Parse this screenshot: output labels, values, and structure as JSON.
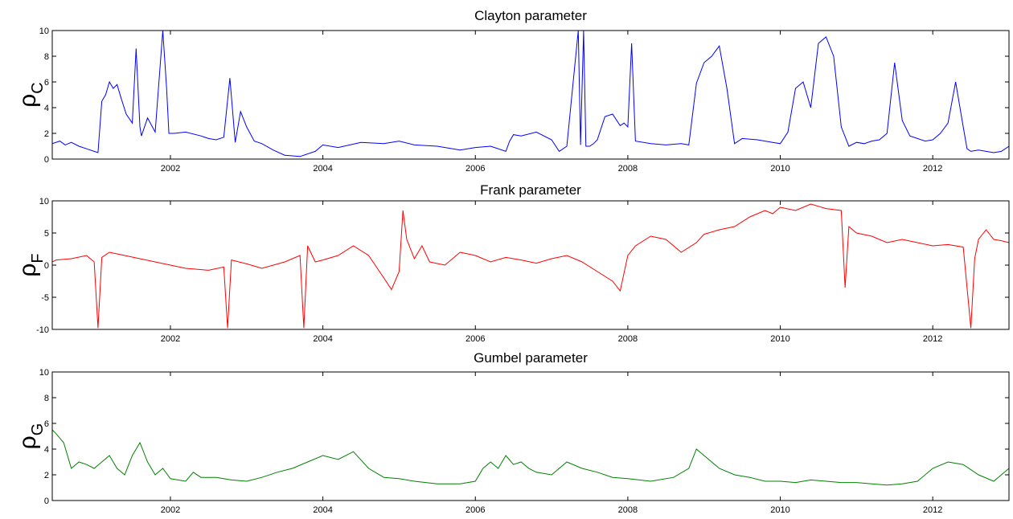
{
  "chart_data": [
    {
      "type": "line",
      "title": "Clayton parameter",
      "ylabel_main": "ρ",
      "ylabel_sub": "C",
      "color": "#0000ff",
      "xlim": [
        2000.45,
        2013.0
      ],
      "ylim": [
        0,
        10
      ],
      "xticks": [
        2002,
        2004,
        2006,
        2008,
        2010,
        2012
      ],
      "xtick_labels": [
        "2002",
        "2004",
        "2006",
        "2008",
        "2010",
        "2012"
      ],
      "yticks": [
        0,
        2,
        4,
        6,
        8,
        10
      ],
      "ytick_labels": [
        "0",
        "2",
        "4",
        "6",
        "8",
        "10"
      ],
      "series": [
        {
          "x": [
            2000.45,
            2000.55,
            2000.62,
            2000.7,
            2000.8,
            2000.9,
            2001.0,
            2001.05,
            2001.1,
            2001.15,
            2001.2,
            2001.25,
            2001.3,
            2001.35,
            2001.42,
            2001.5,
            2001.55,
            2001.6,
            2001.62,
            2001.7,
            2001.8,
            2001.9,
            2001.95,
            2001.98,
            2002.05,
            2002.2,
            2002.4,
            2002.5,
            2002.6,
            2002.7,
            2002.78,
            2002.85,
            2002.92,
            2003.0,
            2003.1,
            2003.2,
            2003.35,
            2003.5,
            2003.7,
            2003.9,
            2004.0,
            2004.2,
            2004.5,
            2004.8,
            2005.0,
            2005.2,
            2005.5,
            2005.8,
            2006.0,
            2006.2,
            2006.4,
            2006.45,
            2006.5,
            2006.6,
            2006.8,
            2007.0,
            2007.1,
            2007.2,
            2007.35,
            2007.38,
            2007.42,
            2007.45,
            2007.5,
            2007.55,
            2007.6,
            2007.7,
            2007.8,
            2007.9,
            2007.95,
            2008.0,
            2008.05,
            2008.1,
            2008.3,
            2008.5,
            2008.7,
            2008.8,
            2008.9,
            2009.0,
            2009.1,
            2009.2,
            2009.3,
            2009.4,
            2009.5,
            2009.7,
            2009.9,
            2010.0,
            2010.1,
            2010.2,
            2010.3,
            2010.4,
            2010.5,
            2010.6,
            2010.7,
            2010.8,
            2010.9,
            2011.0,
            2011.1,
            2011.2,
            2011.3,
            2011.4,
            2011.5,
            2011.6,
            2011.7,
            2011.8,
            2011.9,
            2012.0,
            2012.1,
            2012.2,
            2012.3,
            2012.4,
            2012.45,
            2012.5,
            2012.6,
            2012.8,
            2012.9,
            2013.0
          ],
          "y": [
            1.2,
            1.4,
            1.1,
            1.3,
            1.0,
            0.8,
            0.6,
            0.5,
            4.5,
            5.0,
            6.0,
            5.5,
            5.8,
            4.8,
            3.5,
            2.8,
            8.6,
            2.5,
            1.8,
            3.2,
            2.1,
            10.0,
            5.5,
            2.0,
            2.0,
            2.1,
            1.8,
            1.6,
            1.5,
            1.7,
            6.3,
            1.3,
            3.7,
            2.5,
            1.4,
            1.2,
            0.7,
            0.3,
            0.2,
            0.6,
            1.1,
            0.9,
            1.3,
            1.2,
            1.4,
            1.1,
            1.0,
            0.7,
            0.9,
            1.0,
            0.6,
            1.4,
            1.9,
            1.8,
            2.1,
            1.5,
            0.6,
            1.0,
            10.0,
            1.1,
            10.0,
            1.0,
            1.0,
            1.2,
            1.5,
            3.3,
            3.5,
            2.6,
            2.8,
            2.5,
            9.0,
            1.4,
            1.2,
            1.1,
            1.2,
            1.1,
            5.9,
            7.5,
            8.0,
            8.8,
            5.5,
            1.2,
            1.6,
            1.5,
            1.3,
            1.2,
            2.1,
            5.5,
            6.0,
            4.0,
            9.0,
            9.5,
            8.0,
            2.5,
            1.0,
            1.3,
            1.2,
            1.4,
            1.5,
            2.0,
            7.5,
            3.0,
            1.8,
            1.6,
            1.4,
            1.5,
            2.0,
            2.8,
            6.0,
            2.5,
            0.8,
            0.6,
            0.7,
            0.5,
            0.6,
            1.0
          ]
        }
      ]
    },
    {
      "type": "line",
      "title": "Frank parameter",
      "ylabel_main": "ρ",
      "ylabel_sub": "F",
      "color": "#ff0000",
      "xlim": [
        2000.45,
        2013.0
      ],
      "ylim": [
        -10,
        10
      ],
      "xticks": [
        2002,
        2004,
        2006,
        2008,
        2010,
        2012
      ],
      "xtick_labels": [
        "2002",
        "2004",
        "2006",
        "2008",
        "2010",
        "2012"
      ],
      "yticks": [
        -10,
        -5,
        0,
        5,
        10
      ],
      "ytick_labels": [
        "-10",
        "-5",
        "0",
        "5",
        "10"
      ],
      "series": [
        {
          "x": [
            2000.45,
            2000.5,
            2000.7,
            2000.9,
            2001.0,
            2001.05,
            2001.1,
            2001.2,
            2001.4,
            2001.6,
            2001.8,
            2002.0,
            2002.2,
            2002.5,
            2002.7,
            2002.75,
            2002.8,
            2003.0,
            2003.2,
            2003.5,
            2003.7,
            2003.75,
            2003.8,
            2003.9,
            2004.0,
            2004.2,
            2004.4,
            2004.6,
            2004.8,
            2004.9,
            2005.0,
            2005.05,
            2005.1,
            2005.2,
            2005.3,
            2005.4,
            2005.6,
            2005.8,
            2006.0,
            2006.2,
            2006.4,
            2006.6,
            2006.8,
            2007.0,
            2007.2,
            2007.4,
            2007.6,
            2007.8,
            2007.9,
            2008.0,
            2008.1,
            2008.3,
            2008.5,
            2008.7,
            2008.9,
            2009.0,
            2009.2,
            2009.4,
            2009.6,
            2009.8,
            2009.9,
            2010.0,
            2010.2,
            2010.4,
            2010.6,
            2010.8,
            2010.85,
            2010.9,
            2011.0,
            2011.2,
            2011.4,
            2011.6,
            2011.8,
            2012.0,
            2012.2,
            2012.4,
            2012.5,
            2012.55,
            2012.6,
            2012.7,
            2012.8,
            2012.9,
            2013.0
          ],
          "y": [
            0.5,
            0.8,
            1.0,
            1.5,
            0.5,
            -9.8,
            1.2,
            2.0,
            1.5,
            1.0,
            0.5,
            0.0,
            -0.5,
            -0.8,
            -0.3,
            -9.8,
            0.8,
            0.2,
            -0.5,
            0.5,
            1.5,
            -9.8,
            3.0,
            0.5,
            0.8,
            1.5,
            3.0,
            1.5,
            -2.0,
            -3.8,
            -1.0,
            8.5,
            4.0,
            1.0,
            3.0,
            0.5,
            0.0,
            2.0,
            1.5,
            0.5,
            1.2,
            0.8,
            0.3,
            1.0,
            1.5,
            0.5,
            -1.0,
            -2.5,
            -4.0,
            1.5,
            3.0,
            4.5,
            4.0,
            2.0,
            3.5,
            4.8,
            5.5,
            6.0,
            7.5,
            8.5,
            8.0,
            9.0,
            8.5,
            9.5,
            8.8,
            8.5,
            -3.5,
            6.0,
            5.0,
            4.5,
            3.5,
            4.0,
            3.5,
            3.0,
            3.2,
            2.8,
            -9.8,
            1.0,
            4.0,
            5.5,
            4.0,
            3.8,
            3.5
          ]
        }
      ]
    },
    {
      "type": "line",
      "title": "Gumbel parameter",
      "ylabel_main": "ρ",
      "ylabel_sub": "G",
      "color": "#008000",
      "xlim": [
        2000.45,
        2013.0
      ],
      "ylim": [
        0,
        10
      ],
      "xticks": [
        2002,
        2004,
        2006,
        2008,
        2010,
        2012
      ],
      "xtick_labels": [
        "2002",
        "2004",
        "2006",
        "2008",
        "2010",
        "2012"
      ],
      "yticks": [
        0,
        2,
        4,
        6,
        8,
        10
      ],
      "ytick_labels": [
        "0",
        "2",
        "4",
        "6",
        "8",
        "10"
      ],
      "series": [
        {
          "x": [
            2000.45,
            2000.5,
            2000.6,
            2000.7,
            2000.8,
            2000.9,
            2001.0,
            2001.1,
            2001.2,
            2001.3,
            2001.4,
            2001.5,
            2001.6,
            2001.7,
            2001.8,
            2001.9,
            2002.0,
            2002.2,
            2002.3,
            2002.4,
            2002.6,
            2002.8,
            2003.0,
            2003.2,
            2003.4,
            2003.6,
            2003.8,
            2004.0,
            2004.2,
            2004.4,
            2004.6,
            2004.8,
            2005.0,
            2005.2,
            2005.5,
            2005.8,
            2006.0,
            2006.1,
            2006.2,
            2006.3,
            2006.4,
            2006.5,
            2006.6,
            2006.7,
            2006.8,
            2007.0,
            2007.2,
            2007.4,
            2007.6,
            2007.8,
            2008.0,
            2008.3,
            2008.6,
            2008.8,
            2008.9,
            2009.0,
            2009.2,
            2009.4,
            2009.6,
            2009.8,
            2010.0,
            2010.2,
            2010.4,
            2010.6,
            2010.8,
            2011.0,
            2011.2,
            2011.4,
            2011.6,
            2011.8,
            2012.0,
            2012.2,
            2012.4,
            2012.6,
            2012.8,
            2013.0
          ],
          "y": [
            5.5,
            5.2,
            4.5,
            2.5,
            3.0,
            2.8,
            2.5,
            3.0,
            3.5,
            2.5,
            2.0,
            3.5,
            4.5,
            3.0,
            2.0,
            2.5,
            1.7,
            1.5,
            2.2,
            1.8,
            1.8,
            1.6,
            1.5,
            1.8,
            2.2,
            2.5,
            3.0,
            3.5,
            3.2,
            3.8,
            2.5,
            1.8,
            1.7,
            1.5,
            1.3,
            1.3,
            1.5,
            2.5,
            3.0,
            2.5,
            3.5,
            2.8,
            3.0,
            2.5,
            2.2,
            2.0,
            3.0,
            2.5,
            2.2,
            1.8,
            1.7,
            1.5,
            1.8,
            2.5,
            4.0,
            3.5,
            2.5,
            2.0,
            1.8,
            1.5,
            1.5,
            1.4,
            1.6,
            1.5,
            1.4,
            1.4,
            1.3,
            1.2,
            1.3,
            1.5,
            2.5,
            3.0,
            2.8,
            2.0,
            1.5,
            2.5
          ]
        }
      ]
    }
  ]
}
